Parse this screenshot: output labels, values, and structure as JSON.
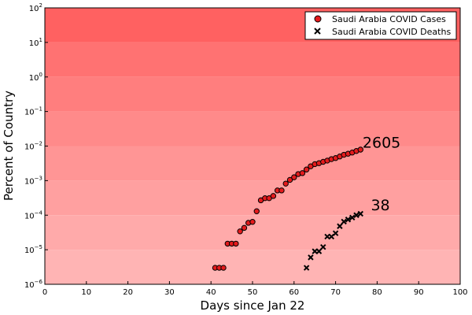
{
  "chart_data": {
    "type": "scatter",
    "xlabel": "Days since Jan 22",
    "ylabel": "Percent of Country",
    "xlim": [
      0,
      100
    ],
    "ylim_log10": [
      -6,
      2
    ],
    "yscale": "log10",
    "grid": false,
    "legend_position": "top-right",
    "x_ticks": [
      0,
      10,
      20,
      30,
      40,
      50,
      60,
      70,
      80,
      90,
      100
    ],
    "y_ticks": [
      {
        "base": "10",
        "exp": "2",
        "log": 2
      },
      {
        "base": "10",
        "exp": "1",
        "log": 1
      },
      {
        "base": "10",
        "exp": "0",
        "log": 0
      },
      {
        "base": "10",
        "exp": "−1",
        "log": -1
      },
      {
        "base": "10",
        "exp": "−2",
        "log": -2
      },
      {
        "base": "10",
        "exp": "−3",
        "log": -3
      },
      {
        "base": "10",
        "exp": "−4",
        "log": -4
      },
      {
        "base": "10",
        "exp": "−5",
        "log": -5
      },
      {
        "base": "10",
        "exp": "−6",
        "log": -6
      }
    ],
    "band_colors": [
      "#ff6161",
      "#ff7272",
      "#ff7e7e",
      "#ff8a8a",
      "#ff9595",
      "#ffa0a0",
      "#ffaaaa",
      "#ffb4b4"
    ],
    "series": [
      {
        "name": "Saudi Arabia COVID Cases",
        "marker": "circle",
        "color": "#e41a1c",
        "x": [
          41,
          42,
          43,
          44,
          45,
          46,
          47,
          48,
          49,
          50,
          51,
          52,
          53,
          54,
          55,
          56,
          57,
          58,
          59,
          60,
          61,
          62,
          63,
          64,
          65,
          66,
          67,
          68,
          69,
          70,
          71,
          72,
          73,
          74,
          75,
          76
        ],
        "y": [
          3e-06,
          3e-06,
          3e-06,
          1.5e-05,
          1.5e-05,
          1.5e-05,
          3.4e-05,
          4.3e-05,
          6e-05,
          6.4e-05,
          0.00013,
          0.00027,
          0.00031,
          0.00031,
          0.00036,
          0.00052,
          0.00052,
          0.00082,
          0.00105,
          0.00125,
          0.00155,
          0.00165,
          0.0021,
          0.0026,
          0.003,
          0.0032,
          0.0035,
          0.0038,
          0.0042,
          0.0045,
          0.005,
          0.0056,
          0.006,
          0.0065,
          0.0072,
          0.0079
        ]
      },
      {
        "name": "Saudi Arabia COVID Deaths",
        "marker": "x",
        "color": "#000000",
        "x": [
          63,
          64,
          65,
          66,
          67,
          68,
          69,
          70,
          71,
          72,
          73,
          74,
          75,
          76
        ],
        "y": [
          3e-06,
          6e-06,
          9e-06,
          9e-06,
          1.2e-05,
          2.4e-05,
          2.4e-05,
          3e-05,
          4.8e-05,
          6.5e-05,
          7.5e-05,
          8.5e-05,
          0.0001,
          0.00011
        ]
      }
    ],
    "annotations": [
      {
        "text": "2605",
        "x": 76.5,
        "y": 0.013
      },
      {
        "text": "38",
        "x": 78.5,
        "y": 0.0002
      }
    ]
  }
}
